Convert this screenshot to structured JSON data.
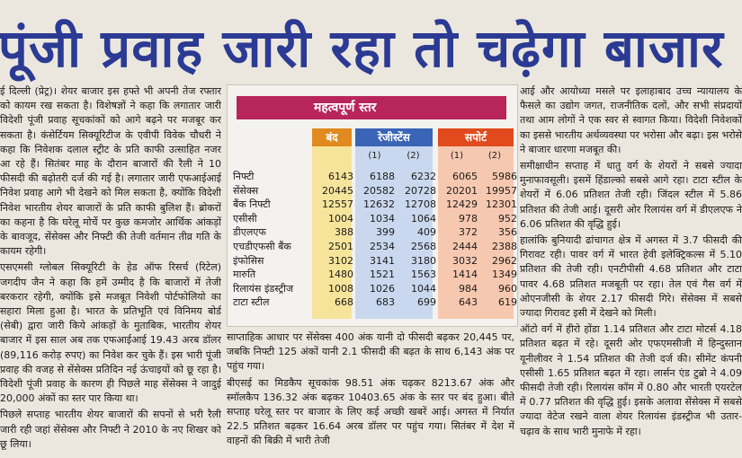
{
  "headline": "पूंजी प्रवाह जारी रहा तो चढ़ेगा बाजार",
  "left_column": [
    "ई दिल्ली (प्रेट्र)। शेयर बाजार इस हफ्ते भी अपनी तेज रफ्तार को कायम रख सकता है। विशेषज्ञों ने कहा कि लगातार जारी विदेशी पूंजी प्रवाह सूचकांकों को आगे बढ़ने पर मजबूर कर सकता है। कंसेर्टियम सिक्यूरिटीज के एवीपी विवेक चौधरी ने कहा कि निवेशक दलाल स्ट्रीट के प्रति काफी उत्साहित नजर आ रहे हैं। सितंबर माह के दौरान बाजारों की रैली ने 10 फीसदी की बढ़ोतरी दर्ज की गई है। लगातार जारी एफआईआई निवेश प्रवाह आगे भी देखने को मिल सकता है, क्योंकि विदेशी निवेश भारतीय शेयर बाजारों के प्रति काफी बुलिश हैं। ब्रोकरों का कहना है कि घरेलू मोर्चे पर कुछ कमजोर आर्थिक आंकड़ों के बावजूद, सेंसेक्स और निफ्टी की तेजी वर्तमान तीव्र गति के कायम रहेगी।",
    "एसएमसी ग्लोबल सिक्यूरिटी के हेड ऑफ रिसर्च (रिटेल) जगदीप जैन ने कहा कि हमें उम्मीद है कि बाजारों में तेजी बरकरार रहेगी, क्योंकि इसे मजबूत निवेशी पोर्टफोलियो का सहारा मिला हुआ है। भारत के प्रतिभूति एवं विनिमय बोर्ड (सेबी) द्वारा जारी किये आंकड़ों के मुताबिक, भारतीय शेयर बाजार में इस साल अब तक एफआईआई 19.43 अरब डॉलर (89,116 करोड़ रुपए) का निवेश कर चुके हैं। इस भारी पूंजी प्रवाह की वजह से सेंसेक्स प्रतिदिन नई ऊंचाइयों को छू रहा है। विदेशी पूंजी प्रवाह के कारण ही पिछले माह सेंसेक्स ने जादुई 20,000 अंकों का स्तर पार किया था।",
    "पिछले सप्ताह भारतीय शेयर बाजारों की सपनों से भरी रैली जारी रही जहां सेंसेक्स और निफ्टी ने 2010 के नए शिखर को छू लिया।"
  ],
  "middle_column": [
    "साप्ताहिक आधार पर सेंसेक्स 400 अंक यानी दो फीसदी बढ़कर 20,445 पर, जबकि निफ्टी 125 अंकों यानी 2.1 फीसदी की बढ़त के साथ 6,143 अंक पर पहुंच गया।",
    "बीएसई का मिडकैप सूचकांक 98.51 अंक चढ़कर 8213.67 अंक और स्मॉलकैप 136.32 अंक बढ़कर 10403.65 अंक के स्तर पर बंद हुआ। बीते सप्ताह घरेलू स्तर पर बाजार के लिए कई अच्छी खबरें आई। अगस्त में निर्यात 22.5 प्रतिशत बढ़कर 16.64 अरब डॉलर पर पहुंच गया। सितंबर में देश में वाहनों की बिक्री में भारी तेजी"
  ],
  "right_column": [
    "आई और आयोध्या मसले पर इलाहाबाद उच्च न्यायालय के फैसले का उद्योग जगत, राजनीतिक दलों, और सभी संप्रदायों तथा आम लोगों ने एक स्वर से स्वागत किया। विदेशी निवेशकों का इससे भारतीय अर्थव्यवस्था पर भरोसा और बढ़ा। इस भरोसे ने बाजार धारणा मजबूत की।",
    "समीक्षाधीन सप्ताह में धातु वर्ग के शेयरों ने सबसे ज्यादा मुनाफावसूली। इसमें हिंडाल्को सबसे आगे रहा। टाटा स्टील के शेयरों में 6.06 प्रतिशत तेजी रही। जिंदल स्टील में 5.86 प्रतिशत की तेजी आई। दूसरी ओर रिलायंस वर्ग में डीएलएफ ने 6.06 प्रतिशत की वृद्धि हुई।",
    "हालांकि बुनियादी ढांचागत क्षेत्र में अगस्त में 3.7 फीसदी की गिरावट रही। पावर वर्ग में भारत हेवी इलेक्ट्रिकल्स में 5.10 प्रतिशत की तेजी रही। एनटीपीसी 4.68 प्रतिशत और टाटा पावर 4.68 प्रतिशत मजबूती पर रहा। तेल एवं गैस वर्ग में ओएनजीसी के शेयर 2.17 फीसदी गिरे। सेंसेक्स में सबसे ज्यादा गिरावट इसी में देखने को मिली।",
    "ऑटो वर्ग में हीरो होंडा 1.14 प्रतिशत और टाटा मोटर्स 4.18 प्रतिशत बढ़त में रहे। दूसरी ओर एफएमसीजी में हिन्दुस्तान यूनीलीवर ने 1.54 प्रतिशत की तेजी दर्ज की। सीमेंट कंपनी एसीसी 1.65 प्रतिशत बढ़त में रहा। लार्सन एंड टुब्रो ने 4.09 फीसदी तेजी रही। रिलायंस कॉम में 0.80 और भारती एयरटेल में 0.77 प्रतिशत की वृद्धि हुई। इसके अलावा सेंसेक्स में सबसे ज्यादा वेटेज रखने वाला शेयर रिलायंस इंडस्ट्रीज भी उतार-चढ़ाव के साथ भारी मुनाफे में रहा।"
  ],
  "table": {
    "title": "महत्वपूर्ण स्तर",
    "headers": {
      "close": "बंद",
      "resistance": "रेजीस्टेंस",
      "support": "सपोर्ट"
    },
    "sub": [
      "(1)",
      "(2)",
      "(1)",
      "(2)"
    ],
    "rows": [
      [
        "निफ्टी",
        "6143",
        "6188",
        "6232",
        "6065",
        "5986"
      ],
      [
        "सेंसेक्स",
        "20445",
        "20582",
        "20728",
        "20201",
        "19957"
      ],
      [
        "बैंक निफ्टी",
        "12557",
        "12632",
        "12708",
        "12429",
        "12301"
      ],
      [
        "एसीसी",
        "1004",
        "1034",
        "1064",
        "978",
        "952"
      ],
      [
        "डीएलएफ",
        "388",
        "399",
        "409",
        "372",
        "356"
      ],
      [
        "एचडीएफसी बैंक",
        "2501",
        "2534",
        "2568",
        "2444",
        "2388"
      ],
      [
        "इंफोसिस",
        "3102",
        "3141",
        "3180",
        "3032",
        "2962"
      ],
      [
        "मारुति",
        "1480",
        "1521",
        "1563",
        "1414",
        "1349"
      ],
      [
        "रिलायंस इंडस्ट्रीज",
        "1008",
        "1026",
        "1044",
        "984",
        "960"
      ],
      [
        "टाटा स्टील",
        "668",
        "683",
        "699",
        "643",
        "619"
      ]
    ]
  }
}
